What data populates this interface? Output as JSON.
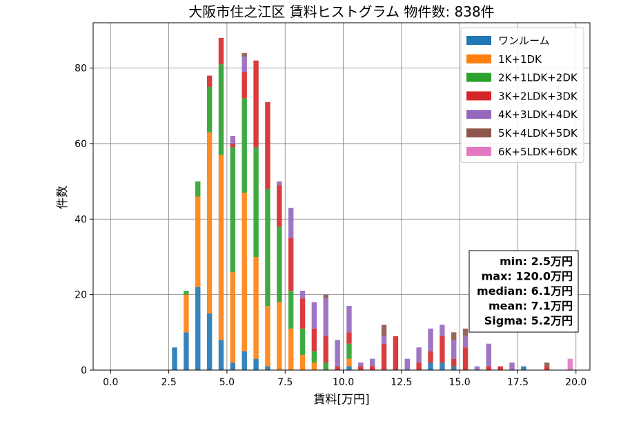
{
  "chart_data": {
    "type": "bar",
    "stacked": true,
    "title": "大阪市住之江区 賃料ヒストグラム 物件数: 838件",
    "xlabel": "賃料[万円]",
    "ylabel": "件数",
    "xlim": [
      -0.75,
      20.6
    ],
    "ylim": [
      0,
      92
    ],
    "xticks": [
      0.0,
      2.5,
      5.0,
      7.5,
      10.0,
      12.5,
      15.0,
      17.5,
      20.0
    ],
    "xtick_labels": [
      "0.0",
      "2.5",
      "5.0",
      "7.5",
      "10.0",
      "12.5",
      "15.0",
      "17.5",
      "20.0"
    ],
    "yticks": [
      0,
      20,
      40,
      60,
      80
    ],
    "ytick_labels": [
      "0",
      "20",
      "40",
      "60",
      "80"
    ],
    "grid": true,
    "legend_position": "top-right",
    "bin_width": 0.25,
    "x": [
      2.25,
      2.5,
      2.75,
      3.0,
      3.25,
      3.5,
      3.75,
      4.0,
      4.25,
      4.5,
      4.75,
      5.0,
      5.25,
      5.5,
      5.75,
      6.0,
      6.25,
      6.5,
      6.75,
      7.0,
      7.25,
      7.5,
      7.75,
      8.0,
      8.25,
      8.5,
      8.75,
      9.0,
      9.25,
      9.5,
      9.75,
      10.0,
      10.25,
      10.5,
      10.75,
      11.0,
      11.25,
      11.5,
      11.75,
      12.0,
      12.25,
      12.5,
      12.75,
      13.0,
      13.25,
      13.5,
      13.75,
      14.0,
      14.25,
      14.5,
      14.75,
      15.0,
      15.25,
      15.5,
      15.75,
      16.0,
      16.25,
      16.5,
      16.75,
      17.0,
      17.25,
      17.5,
      17.75,
      18.0,
      18.25,
      18.5,
      18.75,
      19.0,
      19.25,
      19.5,
      19.75,
      20.0
    ],
    "series": [
      {
        "name": "ワンルーム",
        "color": "#1f77b4",
        "values": [
          0,
          0,
          6,
          0,
          10,
          0,
          22,
          0,
          15,
          0,
          8,
          0,
          2,
          0,
          5,
          0,
          3,
          0,
          1,
          0,
          0,
          0,
          0,
          0,
          0,
          0,
          0,
          0,
          0,
          0,
          0,
          0,
          1,
          0,
          0,
          0,
          0,
          0,
          0,
          0,
          0,
          0,
          0,
          0,
          0,
          0,
          2,
          0,
          2,
          0,
          1,
          0,
          0,
          0,
          0,
          0,
          0,
          0,
          0,
          0,
          0,
          0,
          1,
          0,
          0,
          0,
          0,
          0,
          0,
          0,
          0,
          0
        ]
      },
      {
        "name": "1K+1DK",
        "color": "#ff7f0e",
        "values": [
          0,
          0,
          0,
          0,
          10,
          0,
          24,
          0,
          48,
          0,
          49,
          0,
          24,
          0,
          42,
          0,
          27,
          0,
          16,
          0,
          18,
          0,
          11,
          0,
          4,
          0,
          2,
          0,
          0,
          0,
          0,
          0,
          2,
          0,
          0,
          0,
          0,
          0,
          0,
          0,
          0,
          0,
          0,
          0,
          0,
          0,
          0,
          0,
          0,
          0,
          0,
          0,
          0,
          0,
          0,
          0,
          0,
          0,
          0,
          0,
          0,
          0,
          0,
          0,
          0,
          0,
          0,
          0,
          0,
          0,
          0,
          0
        ]
      },
      {
        "name": "2K+1LDK+2DK",
        "color": "#2ca02c",
        "values": [
          0,
          0,
          0,
          0,
          1,
          0,
          4,
          0,
          12,
          0,
          24,
          0,
          33,
          0,
          25,
          0,
          29,
          0,
          31,
          0,
          20,
          0,
          10,
          0,
          7,
          0,
          3,
          0,
          2,
          0,
          0,
          0,
          4,
          0,
          0,
          0,
          0,
          0,
          0,
          0,
          0,
          0,
          0,
          0,
          0,
          0,
          0,
          0,
          0,
          0,
          0,
          0,
          0,
          0,
          0,
          0,
          0,
          0,
          0,
          0,
          0,
          0,
          0,
          0,
          0,
          0,
          0,
          0,
          0,
          0,
          0,
          0
        ]
      },
      {
        "name": "3K+2LDK+3DK",
        "color": "#d62728",
        "values": [
          0,
          0,
          0,
          0,
          0,
          0,
          0,
          0,
          3,
          0,
          7,
          0,
          1,
          0,
          7,
          0,
          23,
          0,
          23,
          0,
          11,
          0,
          14,
          0,
          8,
          0,
          6,
          0,
          7,
          0,
          1,
          0,
          3,
          0,
          1,
          0,
          1,
          0,
          7,
          0,
          9,
          0,
          0,
          0,
          2,
          0,
          3,
          0,
          7,
          0,
          2,
          0,
          6,
          0,
          0,
          0,
          1,
          0,
          1,
          0,
          0,
          0,
          0,
          0,
          0,
          0,
          1,
          0,
          0,
          0,
          0,
          0
        ]
      },
      {
        "name": "4K+3LDK+4DK",
        "color": "#9467bd",
        "values": [
          0,
          0,
          0,
          0,
          0,
          0,
          0,
          0,
          0,
          0,
          0,
          0,
          2,
          0,
          4,
          0,
          0,
          0,
          0,
          0,
          1,
          0,
          8,
          0,
          2,
          0,
          7,
          0,
          10,
          0,
          7,
          0,
          7,
          0,
          1,
          0,
          2,
          0,
          2,
          0,
          0,
          0,
          3,
          0,
          4,
          0,
          6,
          0,
          3,
          0,
          5,
          0,
          3,
          0,
          1,
          0,
          6,
          0,
          0,
          0,
          2,
          0,
          0,
          0,
          0,
          0,
          0,
          0,
          0,
          0,
          0,
          0
        ]
      },
      {
        "name": "5K+4LDK+5DK",
        "color": "#8c564b",
        "values": [
          0,
          0,
          0,
          0,
          0,
          0,
          0,
          0,
          0,
          0,
          0,
          0,
          0,
          0,
          1,
          0,
          0,
          0,
          0,
          0,
          0,
          0,
          0,
          0,
          0,
          0,
          0,
          0,
          1,
          0,
          0,
          0,
          0,
          0,
          0,
          0,
          0,
          0,
          3,
          0,
          0,
          0,
          0,
          0,
          0,
          0,
          0,
          0,
          0,
          0,
          2,
          0,
          2,
          0,
          0,
          0,
          0,
          0,
          0,
          0,
          0,
          0,
          0,
          0,
          0,
          0,
          1,
          0,
          0,
          0,
          0,
          0
        ]
      },
      {
        "name": "6K+5LDK+6DK",
        "color": "#e377c2",
        "values": [
          0,
          0,
          0,
          0,
          0,
          0,
          0,
          0,
          0,
          0,
          0,
          0,
          0,
          0,
          0,
          0,
          0,
          0,
          0,
          0,
          0,
          0,
          0,
          0,
          0,
          0,
          0,
          0,
          0,
          0,
          0,
          0,
          0,
          0,
          0,
          0,
          0,
          0,
          0,
          0,
          0,
          0,
          0,
          0,
          0,
          0,
          0,
          0,
          0,
          0,
          0,
          0,
          0,
          0,
          0,
          0,
          0,
          0,
          0,
          0,
          0,
          0,
          0,
          0,
          0,
          0,
          0,
          0,
          0,
          0,
          3,
          0
        ]
      }
    ],
    "stats": [
      "min: 2.5万円",
      "max: 120.0万円",
      "median: 6.1万円",
      "mean: 7.1万円",
      "Sigma: 5.2万円"
    ]
  }
}
